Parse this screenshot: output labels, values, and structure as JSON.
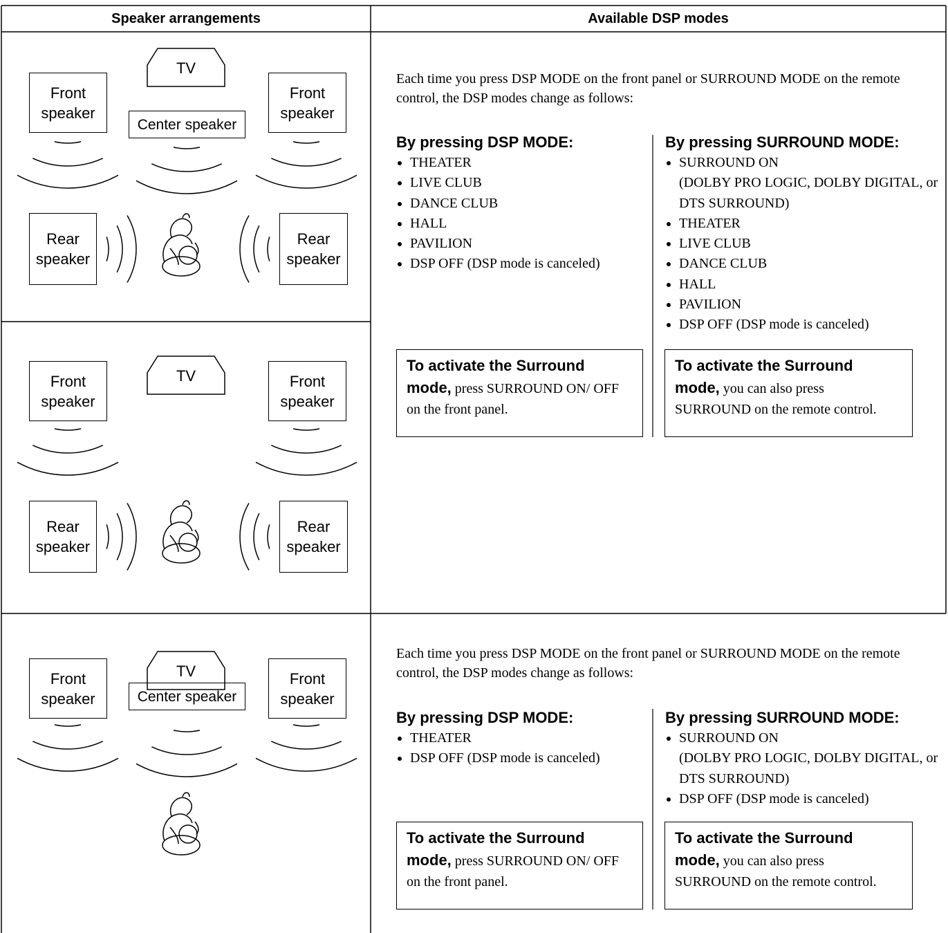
{
  "header": {
    "arrangements": "Speaker arrangements",
    "modes": "Available DSP modes"
  },
  "rows": [
    {
      "diagrams": [
        {
          "front_left": "Front speaker",
          "tv": "TV",
          "center": "Center speaker",
          "front_right": "Front speaker",
          "rear_left": "Rear speaker",
          "rear_right": "Rear speaker"
        },
        {
          "front_left": "Front speaker",
          "tv": "TV",
          "front_right": "Front speaker",
          "rear_left": "Rear speaker",
          "rear_right": "Rear speaker"
        }
      ],
      "intro": "Each time you press DSP MODE on the front panel or SURROUND MODE on the remote control, the DSP modes change as follows:",
      "dsp": {
        "heading": "By pressing DSP MODE:",
        "items": [
          "THEATER",
          "LIVE CLUB",
          "DANCE CLUB",
          "HALL",
          "PAVILION",
          "DSP OFF (DSP mode is canceled)"
        ]
      },
      "surround": {
        "heading": "By pressing SURROUND MODE:",
        "items": [
          {
            "text": "SURROUND ON",
            "detail": "(DOLBY PRO LOGIC, DOLBY DIGITAL, or DTS SURROUND)"
          },
          "THEATER",
          "LIVE CLUB",
          "DANCE CLUB",
          "HALL",
          "PAVILION",
          "DSP OFF (DSP mode is canceled)"
        ]
      },
      "notes": [
        {
          "lead": "To activate the Surround mode,",
          "text": "press SURROUND ON/ OFF on the front panel."
        },
        {
          "lead": "To activate the Surround mode,",
          "text": "you can also press SURROUND on the remote control."
        }
      ]
    },
    {
      "diagrams": [
        {
          "front_left": "Front speaker",
          "tv": "TV",
          "center": "Center speaker",
          "front_right": "Front speaker"
        }
      ],
      "intro": "Each time you press DSP MODE on the front panel or SURROUND MODE on the remote control, the DSP modes change as follows:",
      "dsp": {
        "heading": "By pressing DSP MODE:",
        "items": [
          "THEATER",
          "DSP OFF (DSP mode is canceled)"
        ]
      },
      "surround": {
        "heading": "By pressing SURROUND MODE:",
        "items": [
          {
            "text": "SURROUND ON",
            "detail": "(DOLBY PRO LOGIC, DOLBY DIGITAL, or DTS SURROUND)"
          },
          "DSP OFF (DSP mode is canceled)"
        ]
      },
      "notes": [
        {
          "lead": "To activate the Surround mode,",
          "text": "press SURROUND ON/ OFF on the front panel."
        },
        {
          "lead": "To activate the Surround mode,",
          "text": "you can also press SURROUND on the remote control."
        }
      ]
    }
  ]
}
